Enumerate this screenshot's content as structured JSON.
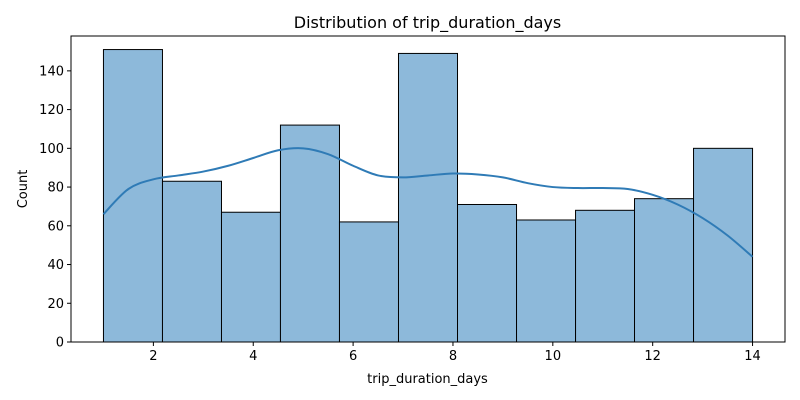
{
  "chart_data": {
    "type": "bar",
    "title": "Distribution of trip_duration_days",
    "xlabel": "trip_duration_days",
    "ylabel": "Count",
    "xlim": [
      0.35,
      14.65
    ],
    "ylim": [
      0,
      158
    ],
    "xticks": [
      "2",
      "4",
      "6",
      "8",
      "10",
      "12",
      "14"
    ],
    "yticks": [
      "0",
      "20",
      "40",
      "60",
      "80",
      "100",
      "120",
      "140"
    ],
    "bins": [
      {
        "x0": 1.0,
        "x1": 2.182,
        "count": 151
      },
      {
        "x0": 2.182,
        "x1": 3.364,
        "count": 83
      },
      {
        "x0": 3.364,
        "x1": 4.545,
        "count": 67
      },
      {
        "x0": 4.545,
        "x1": 5.727,
        "count": 112
      },
      {
        "x0": 5.727,
        "x1": 6.909,
        "count": 62
      },
      {
        "x0": 6.909,
        "x1": 8.091,
        "count": 149
      },
      {
        "x0": 8.091,
        "x1": 9.273,
        "count": 71
      },
      {
        "x0": 9.273,
        "x1": 10.455,
        "count": 63
      },
      {
        "x0": 10.455,
        "x1": 11.636,
        "count": 68
      },
      {
        "x0": 11.636,
        "x1": 12.818,
        "count": 74
      },
      {
        "x0": 12.818,
        "x1": 14.0,
        "count": 100
      }
    ],
    "kde": {
      "x": [
        1.0,
        1.5,
        2.0,
        2.5,
        3.0,
        3.5,
        4.0,
        4.5,
        5.0,
        5.5,
        6.0,
        6.5,
        7.0,
        7.5,
        8.0,
        8.5,
        9.0,
        9.5,
        10.0,
        10.5,
        11.0,
        11.5,
        12.0,
        12.5,
        13.0,
        13.5,
        14.0
      ],
      "y": [
        66,
        79,
        84,
        86,
        88,
        91,
        95,
        99,
        100,
        97,
        91,
        86,
        85,
        86,
        87,
        86.5,
        85,
        82,
        80,
        79.5,
        79.5,
        79,
        76,
        71,
        64,
        55,
        44
      ]
    },
    "grid": false,
    "colors": {
      "bar_fill": "#8db9da",
      "bar_edge": "#000000",
      "kde_line": "#2f7bb6"
    }
  }
}
